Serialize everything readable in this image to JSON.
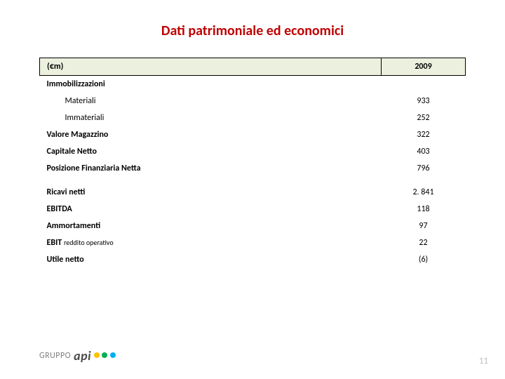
{
  "title": "Dati patrimoniale ed economici",
  "header": {
    "label": "(€m)",
    "year": "2009"
  },
  "colors": {
    "title_color": "#c00000",
    "header_bg": "#ebf1de",
    "border": "#000000",
    "page_num_color": "#bfbfbf",
    "logo_text_color": "#808080"
  },
  "rows": {
    "immobilizzazioni": "Immobilizzazioni",
    "materiali_label": "Materiali",
    "materiali_val": "933",
    "immateriali_label": "Immateriali",
    "immateriali_val": "252",
    "valore_magazzino_label": "Valore Magazzino",
    "valore_magazzino_val": "322",
    "capitale_netto_label": "Capitale Netto",
    "capitale_netto_val": "403",
    "pfn_label": "Posizione Finanziaria Netta",
    "pfn_val": "796",
    "ricavi_label": "Ricavi netti",
    "ricavi_val": "2. 841",
    "ebitda_label": "EBITDA",
    "ebitda_val": "118",
    "ammortamenti_label": "Ammortamenti",
    "ammortamenti_val": "97",
    "ebit_label": "EBIT",
    "ebit_note": "reddito operativo",
    "ebit_val": "22",
    "utile_label": "Utile netto",
    "utile_val": "(6)"
  },
  "logo": {
    "gruppo": "GRUPPO",
    "api": "api"
  },
  "page_number": "11"
}
